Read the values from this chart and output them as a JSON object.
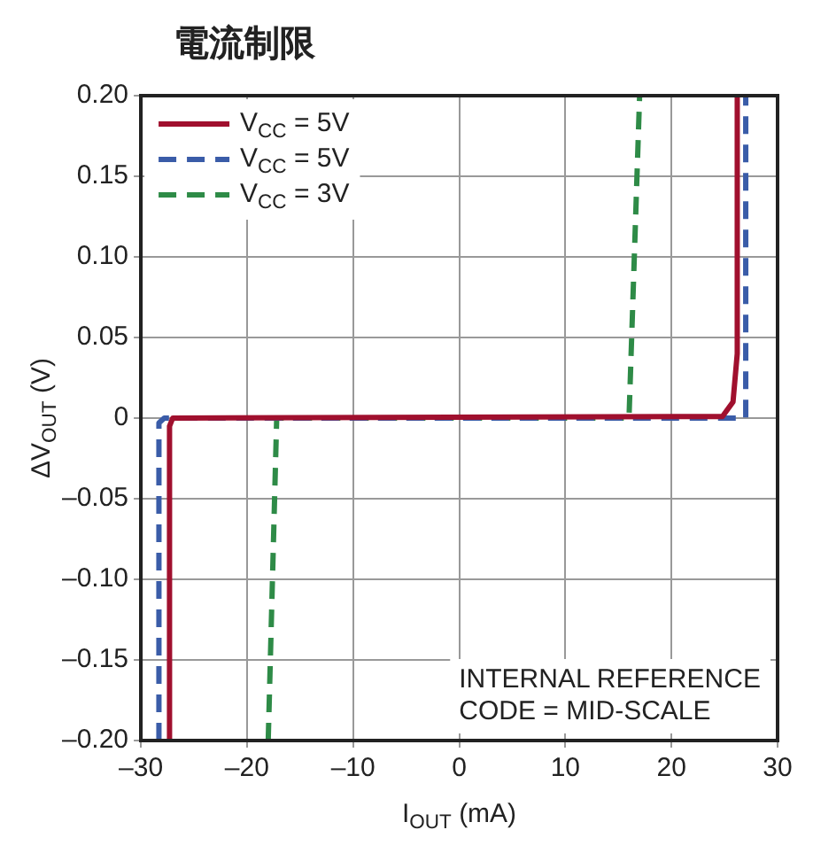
{
  "chart_data": {
    "type": "line",
    "title": "電流制限",
    "xlabel": "I$_{OUT}$ (mA)",
    "ylabel": "ΔV$_{OUT}$ (V)",
    "xlim": [
      -30,
      30
    ],
    "xticks": [
      {
        "value": -30,
        "label": "–30"
      },
      {
        "value": -20,
        "label": "–20"
      },
      {
        "value": -10,
        "label": "–10"
      },
      0,
      10,
      20,
      30
    ],
    "ylim": [
      -0.2,
      0.2
    ],
    "yticks": [
      {
        "value": -0.2,
        "label": "–0.20"
      },
      {
        "value": -0.15,
        "label": "–0.15"
      },
      {
        "value": -0.1,
        "label": "–0.10"
      },
      {
        "value": -0.05,
        "label": "–0.05"
      },
      0,
      {
        "value": 0.05,
        "label": "0.05"
      },
      {
        "value": 0.1,
        "label": "0.10"
      },
      {
        "value": 0.15,
        "label": "0.15"
      },
      {
        "value": 0.2,
        "label": "0.20"
      }
    ],
    "grid": true,
    "legend": "top left",
    "marker": "none",
    "annotations": [
      "INTERNAL REFERENCE\nCODE = MID-SCALE"
    ],
    "series": [
      {
        "name": "V$_{CC}$ = 5V",
        "color": "#a0102e",
        "line_style": "solid",
        "x": [
          -27.3,
          -27.3,
          -27,
          24.8,
          25.8,
          26.2,
          26.2
        ],
        "values": [
          -0.2,
          -0.005,
          0,
          0.001,
          0.01,
          0.04,
          0.2
        ]
      },
      {
        "name": "V$_{CC}$ = 5V",
        "color": "#3a5ca8",
        "line_style": "dashed",
        "x": [
          -28.3,
          -28.3,
          -27.8,
          27,
          27
        ],
        "values": [
          -0.2,
          -0.003,
          0,
          0,
          0.2
        ]
      },
      {
        "name": "V$_{CC}$ = 3V",
        "color": "#2e8b47",
        "line_style": "dashed",
        "x": [
          -18,
          -17.2,
          16,
          17
        ],
        "values": [
          -0.2,
          0,
          0,
          0.2
        ]
      }
    ]
  }
}
